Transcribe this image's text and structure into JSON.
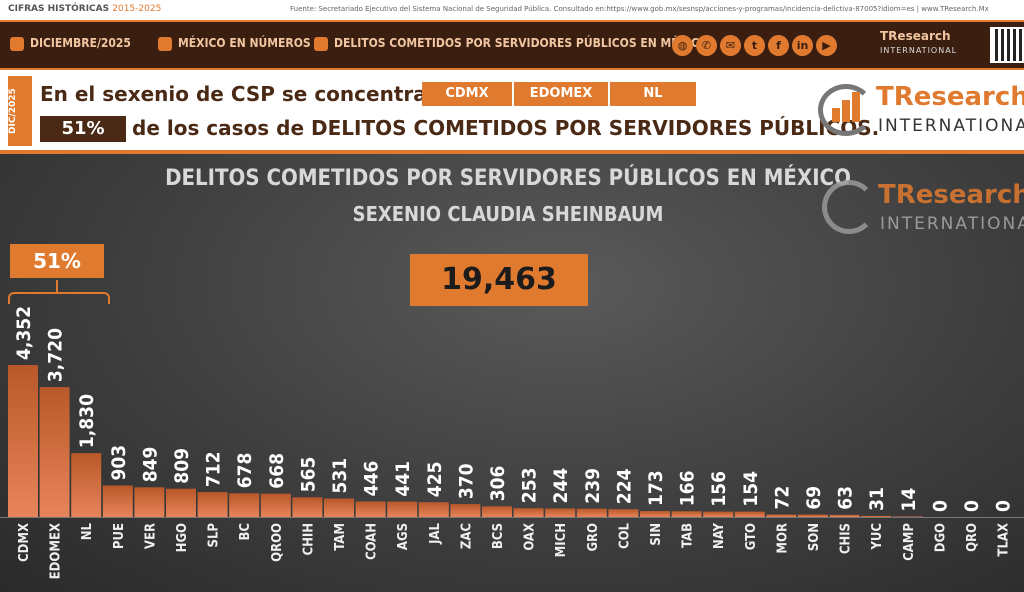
{
  "header": {
    "left_title": "CIFRAS HISTÓRICAS",
    "left_sub": "2015-2025",
    "source": "Fuente: Secretariado Ejecutivo del Sistema Nacional de Seguridad Pública. Consultado en:https://www.gob.mx/sesnsp/acciones-y-programas/incidencia-delictiva-87005?idiom=es | www.TResearch.Mx |"
  },
  "nav": {
    "date": "DICIEMBRE/2025",
    "numbers": "MÉXICO EN NÚMEROS",
    "topic": "DELITOS COMETIDOS POR SERVIDORES PÚBLICOS EN MÉXICO",
    "logo_main": "TResearch",
    "logo_sub": "INTERNATIONAL",
    "social_icons": [
      "globe-icon",
      "phone-icon",
      "mail-icon",
      "twitter-icon",
      "facebook-icon",
      "linkedin-icon",
      "youtube-icon"
    ]
  },
  "banner": {
    "date_tag": "DIC/2025",
    "line1": "En el sexenio de CSP se concentran en",
    "chips": [
      "CDMX",
      "EDOMEX",
      "NL"
    ],
    "percent": "51%",
    "line2": "de los casos de DELITOS COMETIDOS POR SERVIDORES PÚBLICOS.",
    "brand_main": "TResearch",
    "brand_sub": "INTERNATIONAL"
  },
  "chart_data": {
    "type": "bar",
    "title": "DELITOS COMETIDOS POR SERVIDORES PÚBLICOS EN MÉXICO",
    "subtitle": "SEXENIO CLAUDIA SHEINBAUM",
    "total": "19,463",
    "highlight_percent": "51%",
    "categories": [
      "CDMX",
      "EDOMEX",
      "NL",
      "PUE",
      "VER",
      "HGO",
      "SLP",
      "BC",
      "QROO",
      "CHIH",
      "TAM",
      "COAH",
      "AGS",
      "JAL",
      "ZAC",
      "BCS",
      "OAX",
      "MICH",
      "GRO",
      "COL",
      "SIN",
      "TAB",
      "NAY",
      "GTO",
      "MOR",
      "SON",
      "CHIS",
      "YUC",
      "CAMP",
      "DGO",
      "QRO",
      "TLAX"
    ],
    "values": [
      4352,
      3720,
      1830,
      903,
      849,
      809,
      712,
      678,
      668,
      565,
      531,
      446,
      441,
      425,
      370,
      306,
      253,
      244,
      239,
      224,
      173,
      166,
      156,
      154,
      72,
      69,
      63,
      31,
      14,
      0,
      0,
      0
    ],
    "labels": [
      "4,352",
      "3,720",
      "1,830",
      "903",
      "849",
      "809",
      "712",
      "678",
      "668",
      "565",
      "531",
      "446",
      "441",
      "425",
      "370",
      "306",
      "253",
      "244",
      "239",
      "224",
      "173",
      "166",
      "156",
      "154",
      "72",
      "69",
      "63",
      "31",
      "14",
      "0",
      "0",
      "0"
    ],
    "colors": {
      "bar_top": "#b8582a",
      "bar_light": "#e8845a",
      "accent": "#e07a2f"
    }
  }
}
